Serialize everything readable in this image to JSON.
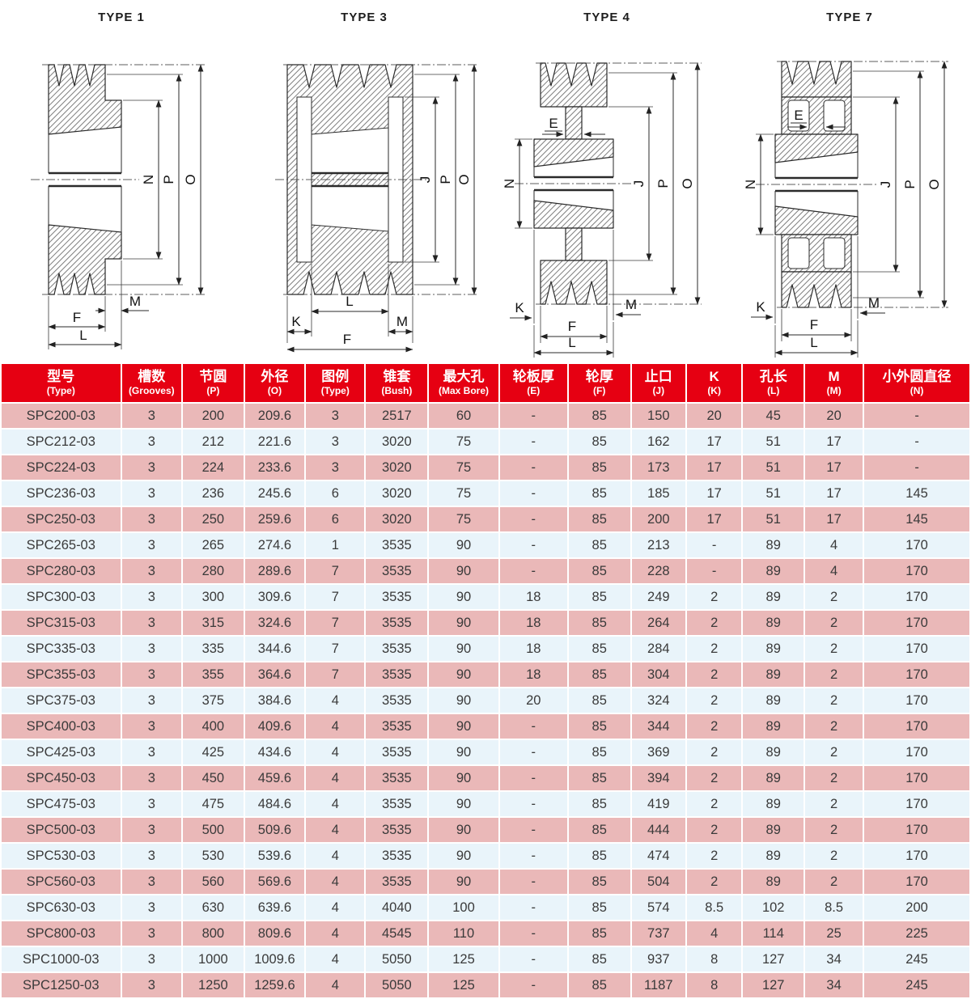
{
  "colors": {
    "header_bg": "#e60012",
    "header_text": "#ffffff",
    "row_pink": "#eab8b8",
    "row_blue": "#e9f4fa",
    "body_text": "#3a3a3a",
    "line_color": "#2a2a2a"
  },
  "diagrams": [
    {
      "title": "TYPE 1",
      "labels": {
        "N": "N",
        "P": "P",
        "O": "O",
        "M": "M",
        "F": "F",
        "L": "L"
      }
    },
    {
      "title": "TYPE 3",
      "labels": {
        "J": "J",
        "P": "P",
        "O": "O",
        "L": "L",
        "K": "K",
        "M": "M",
        "F": "F"
      }
    },
    {
      "title": "TYPE 4",
      "labels": {
        "E": "E",
        "N": "N",
        "J": "J",
        "P": "P",
        "O": "O",
        "K": "K",
        "M": "M",
        "F": "F",
        "L": "L"
      }
    },
    {
      "title": "TYPE 7",
      "labels": {
        "E": "E",
        "N": "N",
        "J": "J",
        "P": "P",
        "O": "O",
        "K": "K",
        "M": "M",
        "F": "F",
        "L": "L"
      }
    }
  ],
  "table": {
    "columns": [
      {
        "zh": "型号",
        "en": "(Type)"
      },
      {
        "zh": "槽数",
        "en": "(Grooves)"
      },
      {
        "zh": "节圆",
        "en": "(P)"
      },
      {
        "zh": "外径",
        "en": "(O)"
      },
      {
        "zh": "图例",
        "en": "(Type)"
      },
      {
        "zh": "锥套",
        "en": "(Bush)"
      },
      {
        "zh": "最大孔",
        "en": "(Max Bore)"
      },
      {
        "zh": "轮板厚",
        "en": "(E)"
      },
      {
        "zh": "轮厚",
        "en": "(F)"
      },
      {
        "zh": "止口",
        "en": "(J)"
      },
      {
        "zh": "K",
        "en": "(K)"
      },
      {
        "zh": "孔长",
        "en": "(L)"
      },
      {
        "zh": "M",
        "en": "(M)"
      },
      {
        "zh": "小外圆直径",
        "en": "(N)"
      }
    ],
    "rows": [
      [
        "SPC200-03",
        "3",
        "200",
        "209.6",
        "3",
        "2517",
        "60",
        "-",
        "85",
        "150",
        "20",
        "45",
        "20",
        "-"
      ],
      [
        "SPC212-03",
        "3",
        "212",
        "221.6",
        "3",
        "3020",
        "75",
        "-",
        "85",
        "162",
        "17",
        "51",
        "17",
        "-"
      ],
      [
        "SPC224-03",
        "3",
        "224",
        "233.6",
        "3",
        "3020",
        "75",
        "-",
        "85",
        "173",
        "17",
        "51",
        "17",
        "-"
      ],
      [
        "SPC236-03",
        "3",
        "236",
        "245.6",
        "6",
        "3020",
        "75",
        "-",
        "85",
        "185",
        "17",
        "51",
        "17",
        "145"
      ],
      [
        "SPC250-03",
        "3",
        "250",
        "259.6",
        "6",
        "3020",
        "75",
        "-",
        "85",
        "200",
        "17",
        "51",
        "17",
        "145"
      ],
      [
        "SPC265-03",
        "3",
        "265",
        "274.6",
        "1",
        "3535",
        "90",
        "-",
        "85",
        "213",
        "-",
        "89",
        "4",
        "170"
      ],
      [
        "SPC280-03",
        "3",
        "280",
        "289.6",
        "7",
        "3535",
        "90",
        "-",
        "85",
        "228",
        "-",
        "89",
        "4",
        "170"
      ],
      [
        "SPC300-03",
        "3",
        "300",
        "309.6",
        "7",
        "3535",
        "90",
        "18",
        "85",
        "249",
        "2",
        "89",
        "2",
        "170"
      ],
      [
        "SPC315-03",
        "3",
        "315",
        "324.6",
        "7",
        "3535",
        "90",
        "18",
        "85",
        "264",
        "2",
        "89",
        "2",
        "170"
      ],
      [
        "SPC335-03",
        "3",
        "335",
        "344.6",
        "7",
        "3535",
        "90",
        "18",
        "85",
        "284",
        "2",
        "89",
        "2",
        "170"
      ],
      [
        "SPC355-03",
        "3",
        "355",
        "364.6",
        "7",
        "3535",
        "90",
        "18",
        "85",
        "304",
        "2",
        "89",
        "2",
        "170"
      ],
      [
        "SPC375-03",
        "3",
        "375",
        "384.6",
        "4",
        "3535",
        "90",
        "20",
        "85",
        "324",
        "2",
        "89",
        "2",
        "170"
      ],
      [
        "SPC400-03",
        "3",
        "400",
        "409.6",
        "4",
        "3535",
        "90",
        "-",
        "85",
        "344",
        "2",
        "89",
        "2",
        "170"
      ],
      [
        "SPC425-03",
        "3",
        "425",
        "434.6",
        "4",
        "3535",
        "90",
        "-",
        "85",
        "369",
        "2",
        "89",
        "2",
        "170"
      ],
      [
        "SPC450-03",
        "3",
        "450",
        "459.6",
        "4",
        "3535",
        "90",
        "-",
        "85",
        "394",
        "2",
        "89",
        "2",
        "170"
      ],
      [
        "SPC475-03",
        "3",
        "475",
        "484.6",
        "4",
        "3535",
        "90",
        "-",
        "85",
        "419",
        "2",
        "89",
        "2",
        "170"
      ],
      [
        "SPC500-03",
        "3",
        "500",
        "509.6",
        "4",
        "3535",
        "90",
        "-",
        "85",
        "444",
        "2",
        "89",
        "2",
        "170"
      ],
      [
        "SPC530-03",
        "3",
        "530",
        "539.6",
        "4",
        "3535",
        "90",
        "-",
        "85",
        "474",
        "2",
        "89",
        "2",
        "170"
      ],
      [
        "SPC560-03",
        "3",
        "560",
        "569.6",
        "4",
        "3535",
        "90",
        "-",
        "85",
        "504",
        "2",
        "89",
        "2",
        "170"
      ],
      [
        "SPC630-03",
        "3",
        "630",
        "639.6",
        "4",
        "4040",
        "100",
        "-",
        "85",
        "574",
        "8.5",
        "102",
        "8.5",
        "200"
      ],
      [
        "SPC800-03",
        "3",
        "800",
        "809.6",
        "4",
        "4545",
        "110",
        "-",
        "85",
        "737",
        "4",
        "114",
        "25",
        "225"
      ],
      [
        "SPC1000-03",
        "3",
        "1000",
        "1009.6",
        "4",
        "5050",
        "125",
        "-",
        "85",
        "937",
        "8",
        "127",
        "34",
        "245"
      ],
      [
        "SPC1250-03",
        "3",
        "1250",
        "1259.6",
        "4",
        "5050",
        "125",
        "-",
        "85",
        "1187",
        "8",
        "127",
        "34",
        "245"
      ]
    ]
  }
}
